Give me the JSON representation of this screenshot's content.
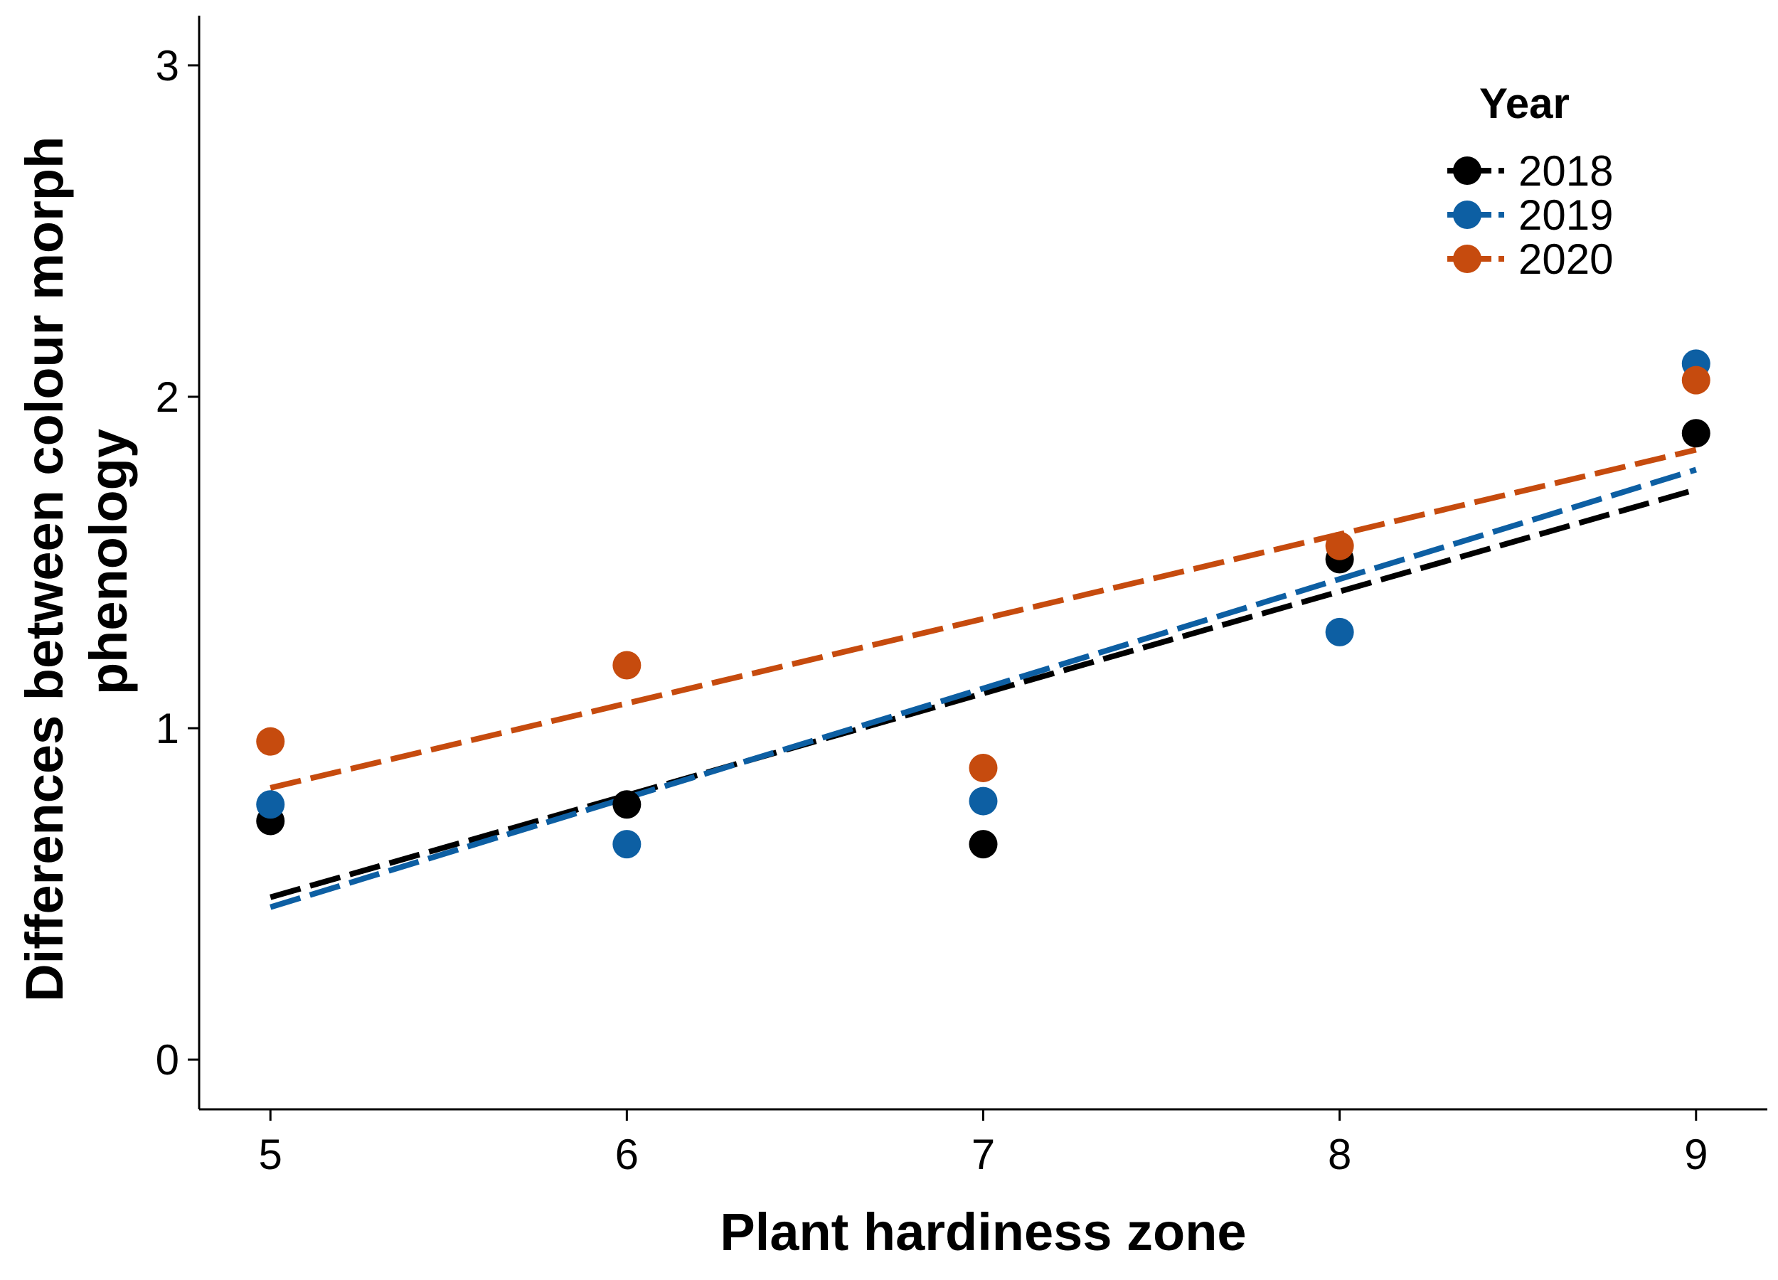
{
  "chart_data": {
    "type": "scatter",
    "xlabel": "Plant hardiness zone",
    "ylabel_lines": [
      "Differences between colour morph",
      "phenology"
    ],
    "xlim": [
      4.8,
      9.2
    ],
    "ylim": [
      -0.15,
      3.15
    ],
    "x_ticks": [
      "5",
      "6",
      "7",
      "8",
      "9"
    ],
    "y_ticks": [
      "0",
      "1",
      "2",
      "3"
    ],
    "grid": false,
    "legend": {
      "title": "Year",
      "position": "top-right"
    },
    "series": [
      {
        "name": "2018",
        "color": "#000000",
        "points": [
          [
            5,
            0.72
          ],
          [
            6,
            0.77
          ],
          [
            7,
            0.65
          ],
          [
            8,
            1.51
          ],
          [
            9,
            1.89
          ]
        ],
        "fit": {
          "x": [
            5,
            9
          ],
          "y": [
            0.49,
            1.72
          ],
          "style": "dashed"
        }
      },
      {
        "name": "2019",
        "color": "#0d5fa3",
        "points": [
          [
            5,
            0.77
          ],
          [
            6,
            0.65
          ],
          [
            7,
            0.78
          ],
          [
            8,
            1.29
          ],
          [
            9,
            2.1
          ]
        ],
        "fit": {
          "x": [
            5,
            9
          ],
          "y": [
            0.46,
            1.78
          ],
          "style": "dashed"
        }
      },
      {
        "name": "2020",
        "color": "#c64b0e",
        "points": [
          [
            5,
            0.96
          ],
          [
            6,
            1.19
          ],
          [
            7,
            0.88
          ],
          [
            8,
            1.55
          ],
          [
            9,
            2.05
          ]
        ],
        "fit": {
          "x": [
            5,
            9
          ],
          "y": [
            0.82,
            1.84
          ],
          "style": "dashed"
        }
      }
    ]
  }
}
